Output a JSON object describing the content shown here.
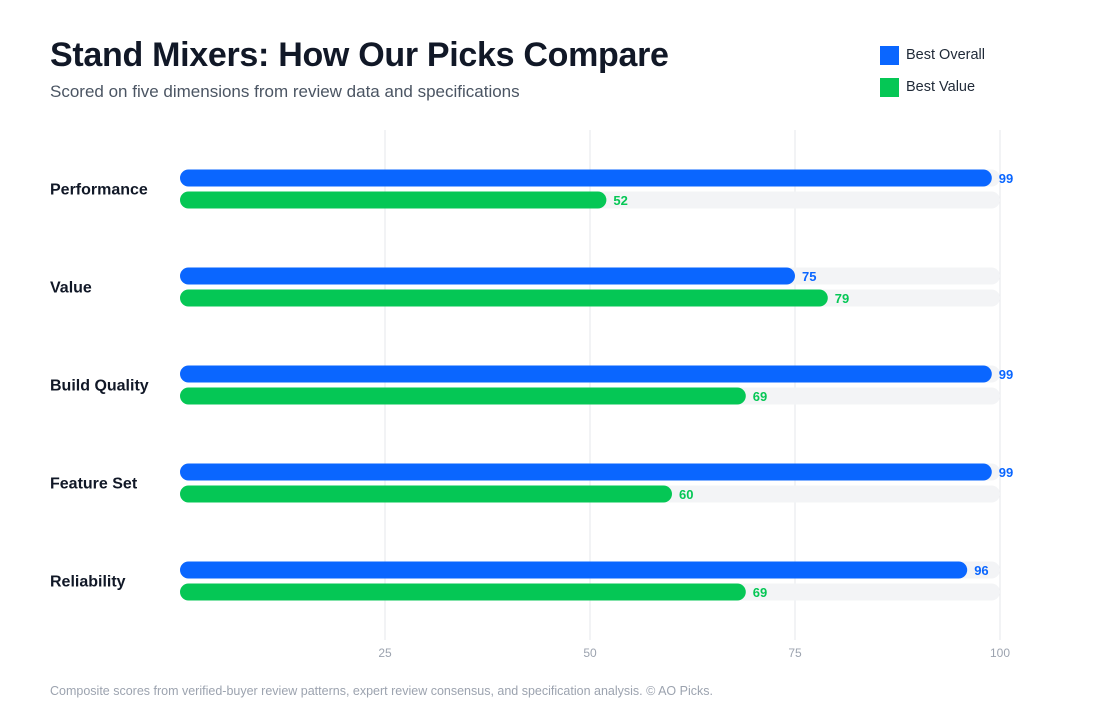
{
  "header": {
    "title": "Stand Mixers: How Our Picks Compare",
    "subtitle": "Scored on five dimensions from review data and specifications"
  },
  "legend": [
    {
      "label": "Best Overall",
      "color": "#0a66ff"
    },
    {
      "label": "Best Value",
      "color": "#05c755"
    }
  ],
  "chart_data": {
    "type": "bar",
    "orientation": "horizontal",
    "title": "Stand Mixers: How Our Picks Compare",
    "subtitle": "Scored on five dimensions from review data and specifications",
    "categories": [
      "Performance",
      "Value",
      "Build Quality",
      "Feature Set",
      "Reliability"
    ],
    "series": [
      {
        "name": "Best Overall",
        "color": "#0a66ff",
        "values": [
          99,
          75,
          99,
          99,
          96
        ]
      },
      {
        "name": "Best Value",
        "color": "#05c755",
        "values": [
          52,
          79,
          69,
          60,
          69
        ]
      }
    ],
    "xlim": [
      0,
      100
    ],
    "xticks": [
      25,
      50,
      75,
      100
    ],
    "grid": true,
    "legend_position": "top-right",
    "data_labels": true
  },
  "footnote": "Composite scores from verified-buyer review patterns, expert review consensus, and specification analysis. © AO Picks."
}
